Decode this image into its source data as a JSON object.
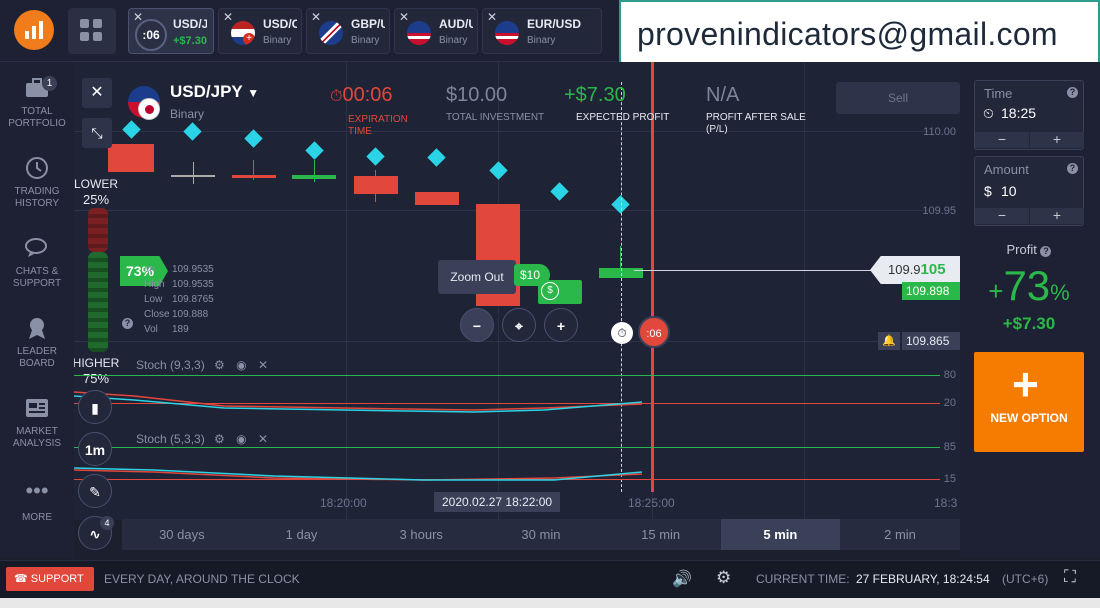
{
  "email": "provenindicators@gmail.com",
  "tabs": [
    {
      "timer": ":06",
      "name": "USD/JPY",
      "sub": "+$7.30"
    },
    {
      "name": "USD/CHF",
      "sub": "Binary"
    },
    {
      "name": "GBP/USD",
      "sub": "Binary"
    },
    {
      "name": "AUD/USD",
      "sub": "Binary"
    },
    {
      "name": "EUR/USD",
      "sub": "Binary"
    }
  ],
  "sidebar": [
    {
      "label": "TOTAL PORTFOLIO",
      "badge": "1"
    },
    {
      "label": "TRADING HISTORY"
    },
    {
      "label": "CHATS & SUPPORT"
    },
    {
      "label": "LEADER BOARD"
    },
    {
      "label": "MARKET ANALYSIS"
    },
    {
      "label": "MORE"
    }
  ],
  "asset": {
    "name": "USD/JPY",
    "type": "Binary"
  },
  "stats": {
    "expiration_value": "00:06",
    "expiration_label": "EXPIRATION TIME",
    "investment_value": "$10.00",
    "investment_label": "TOTAL INVESTMENT",
    "profit_value": "+$7.30",
    "profit_label": "EXPECTED PROFIT",
    "sale_value": "N/A",
    "sale_label": "PROFIT AFTER SALE (P/L)",
    "sell_label": "Sell"
  },
  "sentiment": {
    "lower_label": "LOWER",
    "lower_pct": "25%",
    "higher_label": "HIGHER",
    "higher_pct": "75%"
  },
  "ohlc": {
    "pct": "73%",
    "open_label": "en",
    "open": "109.9535",
    "high_label": "High",
    "high": "109.9535",
    "low_label": "Low",
    "low": "109.8765",
    "close_label": "Close",
    "close": "109.888",
    "vol_label": "Vol",
    "vol": "189"
  },
  "price_levels": [
    "110.00",
    "109.95",
    "109.898",
    "109.865"
  ],
  "current_price": {
    "prefix": "109.9",
    "suffix": "105"
  },
  "deal": {
    "amount": "$10",
    "timer": ":06"
  },
  "zoom_tooltip": "Zoom Out",
  "stoch1": {
    "label": "Stoch (9,3,3)",
    "high": "80",
    "low": "20"
  },
  "stoch2": {
    "label": "Stoch (5,3,3)",
    "high": "85",
    "low": "15"
  },
  "time_axis": {
    "t1": "18:20:00",
    "t2": "2020.02.27 18:22:00",
    "t3": "18:25:00",
    "t4": "18:3"
  },
  "chart_tools": {
    "interval": "1m",
    "badge": "4"
  },
  "timeframes": [
    "30 days",
    "1 day",
    "3 hours",
    "30 min",
    "15 min",
    "5 min",
    "2 min"
  ],
  "right": {
    "time_label": "Time",
    "time_value": "18:25",
    "amount_label": "Amount",
    "amount_value": "10",
    "currency": "$",
    "profit_label": "Profit",
    "profit_pct": "73",
    "profit_sign": "+",
    "profit_pct_unit": "%",
    "profit_amount": "+$7.30",
    "new_option": "NEW OPTION",
    "minus": "−",
    "plus": "+"
  },
  "footer": {
    "support": "SUPPORT",
    "tagline": "EVERY DAY, AROUND THE CLOCK",
    "current_time_label": "CURRENT TIME:",
    "current_time_value": "27 FEBRUARY, 18:24:54",
    "utc": "(UTC+6)"
  },
  "colors": {
    "accent": "#f57c00",
    "green": "#2bb84a",
    "red": "#e2473b",
    "cyan": "#2ad4e6"
  }
}
